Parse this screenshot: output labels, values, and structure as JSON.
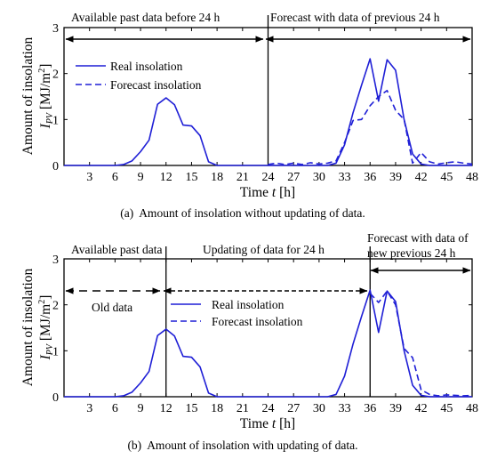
{
  "charts": [
    {
      "ylabel": "Amount of insolation",
      "ylabel_symbol": "I",
      "ylabel_sub": "PV",
      "ylabel_unit_pre": " [MJ/m",
      "ylabel_unit_sup": "2",
      "ylabel_unit_post": "]",
      "xlabel_pre": "Time ",
      "xlabel_var": "t",
      "xlabel_post": " [h]",
      "caption_tag": "(a)",
      "caption_text": "Amount of insolation without updating of data.",
      "annotations": {
        "left": "Available past data before 24 h",
        "right": "Forecast with data of previous 24 h"
      },
      "legend": {
        "real": "Real insolation",
        "forecast": "Forecast insolation"
      },
      "xticks": [
        "3",
        "6",
        "9",
        "12",
        "15",
        "18",
        "21",
        "24",
        "27",
        "30",
        "33",
        "36",
        "39",
        "42",
        "45",
        "48"
      ],
      "yticks": [
        "0",
        "1",
        "2",
        "3"
      ]
    },
    {
      "ylabel": "Amount of insolation",
      "ylabel_symbol": "I",
      "ylabel_sub": "PV",
      "ylabel_unit_pre": " [MJ/m",
      "ylabel_unit_sup": "2",
      "ylabel_unit_post": "]",
      "xlabel_pre": "Time ",
      "xlabel_var": "t",
      "xlabel_post": " [h]",
      "caption_tag": "(b)",
      "caption_text": "Amount of insolation with updating of data.",
      "annotations": {
        "left": "Available past data",
        "middle": "Updating of data for 24 h",
        "right1": "Forecast with data of",
        "right2": "new previous 24 h",
        "old": "Old data"
      },
      "legend": {
        "real": "Real insolation",
        "forecast": "Forecast insolation"
      },
      "xticks": [
        "3",
        "6",
        "9",
        "12",
        "15",
        "18",
        "21",
        "24",
        "27",
        "30",
        "33",
        "36",
        "39",
        "42",
        "45",
        "48"
      ],
      "yticks": [
        "0",
        "1",
        "2",
        "3"
      ]
    }
  ],
  "chart_data": [
    {
      "type": "line",
      "xlim": [
        0,
        48
      ],
      "ylim": [
        0,
        3
      ],
      "xticks": [
        3,
        6,
        9,
        12,
        15,
        18,
        21,
        24,
        27,
        30,
        33,
        36,
        39,
        42,
        45,
        48
      ],
      "yticks": [
        0,
        1,
        2,
        3
      ],
      "grid": false,
      "legend_position": "upper-left",
      "dividers": [
        24
      ],
      "series": [
        {
          "name": "Real insolation",
          "style": "solid",
          "color": "#1f1fd6",
          "x": [
            0,
            1,
            2,
            3,
            4,
            5,
            6,
            7,
            8,
            9,
            10,
            11,
            12,
            13,
            14,
            15,
            16,
            17,
            18,
            19,
            20,
            21,
            22,
            23,
            24,
            25,
            26,
            27,
            28,
            29,
            30,
            31,
            32,
            33,
            34,
            35,
            36,
            37,
            38,
            39,
            40,
            41,
            42,
            43,
            44,
            45,
            46,
            47,
            48
          ],
          "y": [
            0,
            0,
            0,
            0,
            0,
            0,
            0,
            0.02,
            0.1,
            0.3,
            0.55,
            1.33,
            1.47,
            1.32,
            0.88,
            0.86,
            0.65,
            0.08,
            0,
            0,
            0,
            0,
            0,
            0,
            0,
            0,
            0,
            0,
            0,
            0,
            0,
            0,
            0.05,
            0.45,
            1.15,
            1.75,
            2.32,
            1.4,
            2.3,
            2.07,
            1.0,
            0.25,
            0.03,
            0,
            0,
            0,
            0,
            0,
            0
          ]
        },
        {
          "name": "Forecast insolation",
          "style": "dashed",
          "color": "#1f1fd6",
          "x": [
            24,
            25,
            26,
            27,
            28,
            29,
            30,
            31,
            32,
            33,
            34,
            35,
            36,
            37,
            38,
            39,
            40,
            41,
            42,
            43,
            44,
            45,
            46,
            47,
            48
          ],
          "y": [
            0.02,
            0.05,
            0.02,
            0.05,
            0.02,
            0.06,
            0.03,
            0.05,
            0.1,
            0.5,
            0.98,
            1.0,
            1.3,
            1.5,
            1.63,
            1.2,
            1.0,
            0.05,
            0.28,
            0.08,
            0.03,
            0.06,
            0.08,
            0.05,
            0.03
          ]
        }
      ]
    },
    {
      "type": "line",
      "xlim": [
        0,
        48
      ],
      "ylim": [
        0,
        3
      ],
      "xticks": [
        3,
        6,
        9,
        12,
        15,
        18,
        21,
        24,
        27,
        30,
        33,
        36,
        39,
        42,
        45,
        48
      ],
      "yticks": [
        0,
        1,
        2,
        3
      ],
      "grid": false,
      "legend_position": "upper-middle",
      "dividers": [
        12,
        36
      ],
      "series": [
        {
          "name": "Real insolation",
          "style": "solid",
          "color": "#1f1fd6",
          "x": [
            0,
            1,
            2,
            3,
            4,
            5,
            6,
            7,
            8,
            9,
            10,
            11,
            12,
            13,
            14,
            15,
            16,
            17,
            18,
            19,
            20,
            21,
            22,
            23,
            24,
            25,
            26,
            27,
            28,
            29,
            30,
            31,
            32,
            33,
            34,
            35,
            36,
            37,
            38,
            39,
            40,
            41,
            42,
            43,
            44,
            45,
            46,
            47,
            48
          ],
          "y": [
            0,
            0,
            0,
            0,
            0,
            0,
            0,
            0.02,
            0.1,
            0.3,
            0.55,
            1.33,
            1.47,
            1.32,
            0.88,
            0.86,
            0.65,
            0.08,
            0,
            0,
            0,
            0,
            0,
            0,
            0,
            0,
            0,
            0,
            0,
            0,
            0,
            0,
            0.05,
            0.45,
            1.15,
            1.75,
            2.32,
            1.4,
            2.3,
            2.07,
            1.0,
            0.25,
            0.03,
            0,
            0,
            0,
            0,
            0,
            0
          ]
        },
        {
          "name": "Forecast insolation",
          "style": "dashed",
          "color": "#1f1fd6",
          "x": [
            36,
            37,
            38,
            39,
            40,
            41,
            42,
            43,
            44,
            45,
            46,
            47,
            48
          ],
          "y": [
            2.25,
            2.05,
            2.3,
            2.0,
            1.05,
            0.85,
            0.15,
            0.05,
            0.02,
            0.04,
            0.03,
            0.02,
            0.03
          ]
        }
      ]
    }
  ]
}
